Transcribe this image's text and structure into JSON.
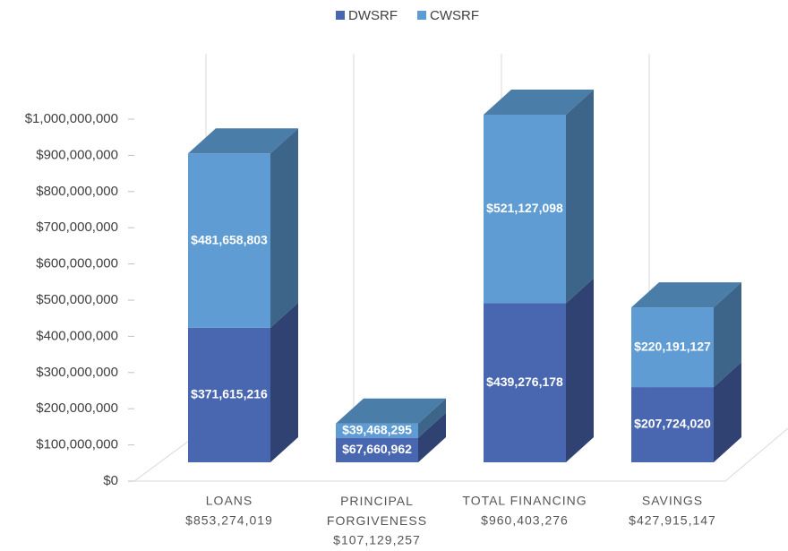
{
  "chart_data": {
    "type": "bar3d_stacked",
    "categories": [
      "LOANS",
      "PRINCIPAL FORGIVENESS",
      "TOTAL FINANCING",
      "SAVINGS"
    ],
    "totals": [
      853274019,
      107129257,
      960403276,
      427915147
    ],
    "total_labels": [
      "$853,274,019",
      "$107,129,257",
      "$960,403,276",
      "$427,915,147"
    ],
    "series": [
      {
        "name": "DWSRF",
        "color": "#4966b0",
        "values": [
          371615216,
          67660962,
          439276178,
          207724020
        ],
        "value_labels": [
          "$371,615,216",
          "$67,660,962",
          "$439,276,178",
          "$207,724,020"
        ]
      },
      {
        "name": "CWSRF",
        "color": "#5e9cd3",
        "values": [
          481658803,
          39468295,
          521127098,
          220191127
        ],
        "value_labels": [
          "$481,658,803",
          "$39,468,295",
          "$521,127,098",
          "$220,191,127"
        ]
      }
    ],
    "ylim": [
      0,
      1000000000
    ],
    "yticks": [
      {
        "value": 0,
        "label": "$0"
      },
      {
        "value": 100000000,
        "label": "$100,000,000"
      },
      {
        "value": 200000000,
        "label": "$200,000,000"
      },
      {
        "value": 300000000,
        "label": "$300,000,000"
      },
      {
        "value": 400000000,
        "label": "$400,000,000"
      },
      {
        "value": 500000000,
        "label": "$500,000,000"
      },
      {
        "value": 600000000,
        "label": "$600,000,000"
      },
      {
        "value": 700000000,
        "label": "$700,000,000"
      },
      {
        "value": 800000000,
        "label": "$800,000,000"
      },
      {
        "value": 900000000,
        "label": "$900,000,000"
      },
      {
        "value": 1000000000,
        "label": "$1,000,000,000"
      }
    ],
    "grid": false,
    "legend": "top"
  }
}
